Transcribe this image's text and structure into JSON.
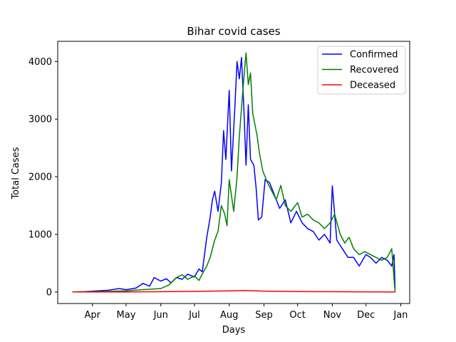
{
  "chart_data": {
    "type": "line",
    "title": "Bihar covid cases",
    "xlabel": "Days",
    "ylabel": "Total Cases",
    "x_start": "2020-03-14",
    "x_end": "2020-12-27",
    "x_ticks": [
      {
        "date": "2020-04-01",
        "label": "Apr"
      },
      {
        "date": "2020-05-01",
        "label": "May"
      },
      {
        "date": "2020-06-01",
        "label": "Jun"
      },
      {
        "date": "2020-07-01",
        "label": "Jul"
      },
      {
        "date": "2020-08-01",
        "label": "Aug"
      },
      {
        "date": "2020-09-01",
        "label": "Sep"
      },
      {
        "date": "2020-10-01",
        "label": "Oct"
      },
      {
        "date": "2020-11-01",
        "label": "Nov"
      },
      {
        "date": "2020-12-01",
        "label": "Dec"
      },
      {
        "date": "2021-01-01",
        "label": "Jan"
      }
    ],
    "y_ticks": [
      0,
      1000,
      2000,
      3000,
      4000
    ],
    "xlim": [
      "2020-03-01",
      "2021-01-09"
    ],
    "ylim": [
      -200,
      4350
    ],
    "grid": false,
    "legend_position": "top-right",
    "series": [
      {
        "name": "Confirmed",
        "color": "#0000ff",
        "points": [
          [
            "2020-03-14",
            0
          ],
          [
            "2020-03-25",
            5
          ],
          [
            "2020-04-05",
            20
          ],
          [
            "2020-04-15",
            30
          ],
          [
            "2020-04-25",
            60
          ],
          [
            "2020-05-01",
            40
          ],
          [
            "2020-05-10",
            70
          ],
          [
            "2020-05-16",
            150
          ],
          [
            "2020-05-22",
            100
          ],
          [
            "2020-05-26",
            250
          ],
          [
            "2020-06-01",
            190
          ],
          [
            "2020-06-06",
            230
          ],
          [
            "2020-06-10",
            160
          ],
          [
            "2020-06-15",
            250
          ],
          [
            "2020-06-20",
            220
          ],
          [
            "2020-06-25",
            310
          ],
          [
            "2020-07-01",
            260
          ],
          [
            "2020-07-05",
            400
          ],
          [
            "2020-07-08",
            350
          ],
          [
            "2020-07-12",
            950
          ],
          [
            "2020-07-15",
            1300
          ],
          [
            "2020-07-17",
            1600
          ],
          [
            "2020-07-19",
            1750
          ],
          [
            "2020-07-22",
            1400
          ],
          [
            "2020-07-25",
            1900
          ],
          [
            "2020-07-27",
            2800
          ],
          [
            "2020-07-29",
            2300
          ],
          [
            "2020-08-01",
            3500
          ],
          [
            "2020-08-03",
            2100
          ],
          [
            "2020-08-06",
            3200
          ],
          [
            "2020-08-08",
            4000
          ],
          [
            "2020-08-10",
            3700
          ],
          [
            "2020-08-12",
            4070
          ],
          [
            "2020-08-14",
            3200
          ],
          [
            "2020-08-16",
            2200
          ],
          [
            "2020-08-18",
            3250
          ],
          [
            "2020-08-20",
            2300
          ],
          [
            "2020-08-23",
            2200
          ],
          [
            "2020-08-25",
            1800
          ],
          [
            "2020-08-27",
            1250
          ],
          [
            "2020-08-30",
            1300
          ],
          [
            "2020-09-02",
            1950
          ],
          [
            "2020-09-06",
            1900
          ],
          [
            "2020-09-10",
            1700
          ],
          [
            "2020-09-15",
            1450
          ],
          [
            "2020-09-20",
            1600
          ],
          [
            "2020-09-25",
            1200
          ],
          [
            "2020-09-30",
            1400
          ],
          [
            "2020-10-05",
            1200
          ],
          [
            "2020-10-10",
            1100
          ],
          [
            "2020-10-15",
            1050
          ],
          [
            "2020-10-20",
            900
          ],
          [
            "2020-10-25",
            1000
          ],
          [
            "2020-10-30",
            850
          ],
          [
            "2020-11-01",
            1840
          ],
          [
            "2020-11-05",
            900
          ],
          [
            "2020-11-10",
            750
          ],
          [
            "2020-11-15",
            600
          ],
          [
            "2020-11-20",
            600
          ],
          [
            "2020-11-25",
            450
          ],
          [
            "2020-12-01",
            650
          ],
          [
            "2020-12-05",
            600
          ],
          [
            "2020-12-10",
            500
          ],
          [
            "2020-12-15",
            600
          ],
          [
            "2020-12-20",
            550
          ],
          [
            "2020-12-24",
            450
          ],
          [
            "2020-12-26",
            650
          ],
          [
            "2020-12-27",
            50
          ]
        ]
      },
      {
        "name": "Recovered",
        "color": "#008000",
        "points": [
          [
            "2020-03-14",
            0
          ],
          [
            "2020-04-15",
            10
          ],
          [
            "2020-05-01",
            20
          ],
          [
            "2020-05-15",
            40
          ],
          [
            "2020-06-01",
            60
          ],
          [
            "2020-06-08",
            120
          ],
          [
            "2020-06-15",
            250
          ],
          [
            "2020-06-20",
            300
          ],
          [
            "2020-06-25",
            220
          ],
          [
            "2020-07-01",
            280
          ],
          [
            "2020-07-05",
            200
          ],
          [
            "2020-07-09",
            350
          ],
          [
            "2020-07-12",
            450
          ],
          [
            "2020-07-15",
            600
          ],
          [
            "2020-07-19",
            900
          ],
          [
            "2020-07-22",
            1050
          ],
          [
            "2020-07-25",
            1500
          ],
          [
            "2020-07-28",
            1350
          ],
          [
            "2020-07-30",
            1150
          ],
          [
            "2020-08-01",
            1950
          ],
          [
            "2020-08-05",
            1400
          ],
          [
            "2020-08-08",
            2000
          ],
          [
            "2020-08-10",
            2700
          ],
          [
            "2020-08-12",
            3200
          ],
          [
            "2020-08-14",
            3700
          ],
          [
            "2020-08-16",
            4150
          ],
          [
            "2020-08-18",
            3600
          ],
          [
            "2020-08-20",
            3800
          ],
          [
            "2020-08-22",
            3100
          ],
          [
            "2020-08-24",
            2900
          ],
          [
            "2020-08-26",
            2700
          ],
          [
            "2020-08-28",
            2400
          ],
          [
            "2020-08-31",
            2100
          ],
          [
            "2020-09-04",
            1900
          ],
          [
            "2020-09-08",
            1750
          ],
          [
            "2020-09-12",
            1600
          ],
          [
            "2020-09-16",
            1850
          ],
          [
            "2020-09-20",
            1500
          ],
          [
            "2020-09-25",
            1400
          ],
          [
            "2020-10-01",
            1550
          ],
          [
            "2020-10-05",
            1300
          ],
          [
            "2020-10-10",
            1350
          ],
          [
            "2020-10-15",
            1250
          ],
          [
            "2020-10-20",
            1200
          ],
          [
            "2020-10-25",
            1100
          ],
          [
            "2020-10-30",
            1200
          ],
          [
            "2020-11-03",
            1350
          ],
          [
            "2020-11-08",
            1000
          ],
          [
            "2020-11-12",
            850
          ],
          [
            "2020-11-16",
            950
          ],
          [
            "2020-11-20",
            750
          ],
          [
            "2020-11-25",
            650
          ],
          [
            "2020-11-30",
            700
          ],
          [
            "2020-12-05",
            650
          ],
          [
            "2020-12-10",
            600
          ],
          [
            "2020-12-15",
            550
          ],
          [
            "2020-12-20",
            600
          ],
          [
            "2020-12-24",
            750
          ],
          [
            "2020-12-27",
            0
          ]
        ]
      },
      {
        "name": "Deceased",
        "color": "#ff0000",
        "points": [
          [
            "2020-03-14",
            0
          ],
          [
            "2020-05-01",
            2
          ],
          [
            "2020-06-01",
            5
          ],
          [
            "2020-07-01",
            10
          ],
          [
            "2020-07-15",
            15
          ],
          [
            "2020-08-01",
            20
          ],
          [
            "2020-08-15",
            25
          ],
          [
            "2020-09-01",
            15
          ],
          [
            "2020-10-01",
            8
          ],
          [
            "2020-11-01",
            5
          ],
          [
            "2020-12-01",
            3
          ],
          [
            "2020-12-27",
            2
          ]
        ]
      }
    ]
  }
}
